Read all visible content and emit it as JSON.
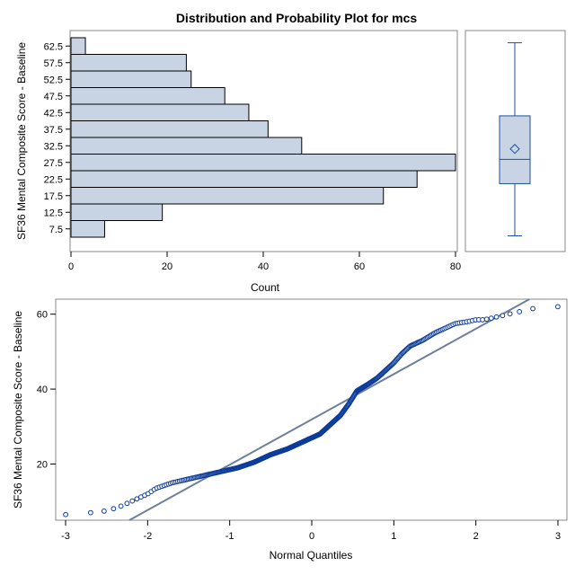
{
  "title": "Distribution and Probability Plot for mcs",
  "colors": {
    "bar_fill": "#c8d4e4",
    "bar_stroke": "#000000",
    "marker": "#0b3b9c",
    "ref_line": "#6e7f9c",
    "box_fill": "#c8d4e4",
    "box_stroke": "#1f4fa0"
  },
  "chart_data": [
    {
      "type": "bar",
      "orientation": "horizontal",
      "title": "Distribution and Probability Plot for mcs",
      "categories": [
        "62.5",
        "57.5",
        "52.5",
        "47.5",
        "42.5",
        "37.5",
        "32.5",
        "27.5",
        "22.5",
        "17.5",
        "12.5",
        "7.5"
      ],
      "values": [
        3,
        24,
        25,
        32,
        37,
        41,
        48,
        80,
        72,
        65,
        19,
        7
      ],
      "xlabel": "Count",
      "ylabel": "SF36 Mental Composite Score - Baseline",
      "xlim": [
        0,
        80
      ],
      "xticks": [
        "0",
        "20",
        "40",
        "60",
        "80"
      ],
      "grid": false
    },
    {
      "type": "box",
      "min": 6.5,
      "q1": 21.5,
      "median": 28.5,
      "mean": 31.5,
      "q3": 41,
      "max": 62,
      "ylim": [
        2.5,
        65
      ]
    },
    {
      "type": "scatter",
      "subtype": "normal-probability",
      "xlabel": "Normal Quantiles",
      "ylabel": "SF36 Mental Composite Score - Baseline",
      "xlim": [
        -3,
        3
      ],
      "ylim": [
        5,
        64
      ],
      "xticks": [
        "-3",
        "-2",
        "-1",
        "0",
        "1",
        "2",
        "3"
      ],
      "yticks": [
        "20",
        "40",
        "60"
      ],
      "reference_line": {
        "intercept": 31.9,
        "slope": 12.1
      },
      "curve": {
        "x": [
          -3.0,
          -2.7,
          -2.5,
          -2.35,
          -2.2,
          -2.1,
          -2.0,
          -1.9,
          -1.7,
          -1.5,
          -1.3,
          -1.1,
          -0.9,
          -0.7,
          -0.5,
          -0.3,
          -0.1,
          0.0,
          0.1,
          0.2,
          0.35,
          0.45,
          0.55,
          0.7,
          0.8,
          0.9,
          1.0,
          1.1,
          1.2,
          1.35,
          1.5,
          1.6,
          1.75,
          1.9,
          2.0,
          2.1,
          2.2,
          2.3,
          2.4,
          2.5,
          2.7,
          3.0
        ],
        "y": [
          6.5,
          7.0,
          7.5,
          8.5,
          10.0,
          11.0,
          12.0,
          13.5,
          15.0,
          16.0,
          17.0,
          18.0,
          19.0,
          20.5,
          22.5,
          24.0,
          26.0,
          27.0,
          28.0,
          30.0,
          33.0,
          36.0,
          39.5,
          41.5,
          43.0,
          45.0,
          47.0,
          49.5,
          51.5,
          53.0,
          55.0,
          56.0,
          57.5,
          58.0,
          58.5,
          58.5,
          59.0,
          59.5,
          60.0,
          60.5,
          61.5,
          62.0
        ]
      },
      "n_points": 461
    }
  ]
}
